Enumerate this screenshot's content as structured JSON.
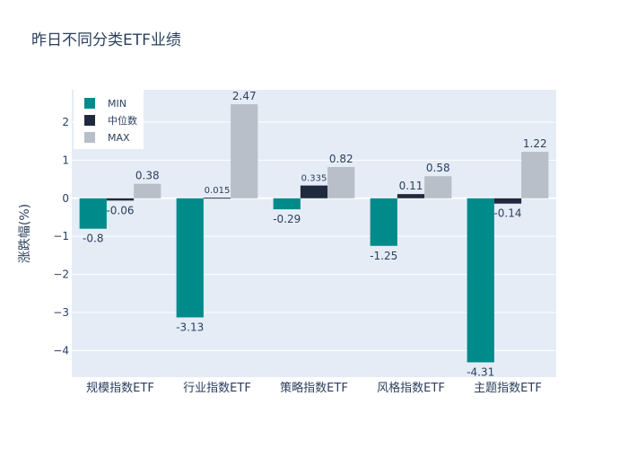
{
  "chart_data": {
    "type": "bar",
    "title": "昨日不同分类ETF业绩",
    "ylabel": "涨跌幅(%)",
    "xlabel": "",
    "categories": [
      "规模指数ETF",
      "行业指数ETF",
      "策略指数ETF",
      "风格指数ETF",
      "主题指数ETF"
    ],
    "series": [
      {
        "name": "MIN",
        "color": "#008b8b",
        "values": [
          -0.8,
          -3.13,
          -0.29,
          -1.25,
          -4.31
        ],
        "labels": [
          "-0.8",
          "-3.13",
          "-0.29",
          "-1.25",
          "-4.31"
        ]
      },
      {
        "name": "中位数",
        "color": "#1f2a3e",
        "values": [
          -0.06,
          0.015,
          0.335,
          0.11,
          -0.14
        ],
        "labels": [
          "-0.06",
          "0.015",
          "0.335",
          "0.11",
          "-0.14"
        ]
      },
      {
        "name": "MAX",
        "color": "#b8bfc8",
        "values": [
          0.38,
          2.47,
          0.82,
          0.58,
          1.22
        ],
        "labels": [
          "0.38",
          "2.47",
          "0.82",
          "0.58",
          "1.22"
        ]
      }
    ],
    "yticks": [
      -4,
      -3,
      -2,
      -1,
      0,
      1,
      2
    ],
    "ylim": [
      -4.7,
      2.85
    ],
    "grid": true,
    "legend": "top-left"
  }
}
